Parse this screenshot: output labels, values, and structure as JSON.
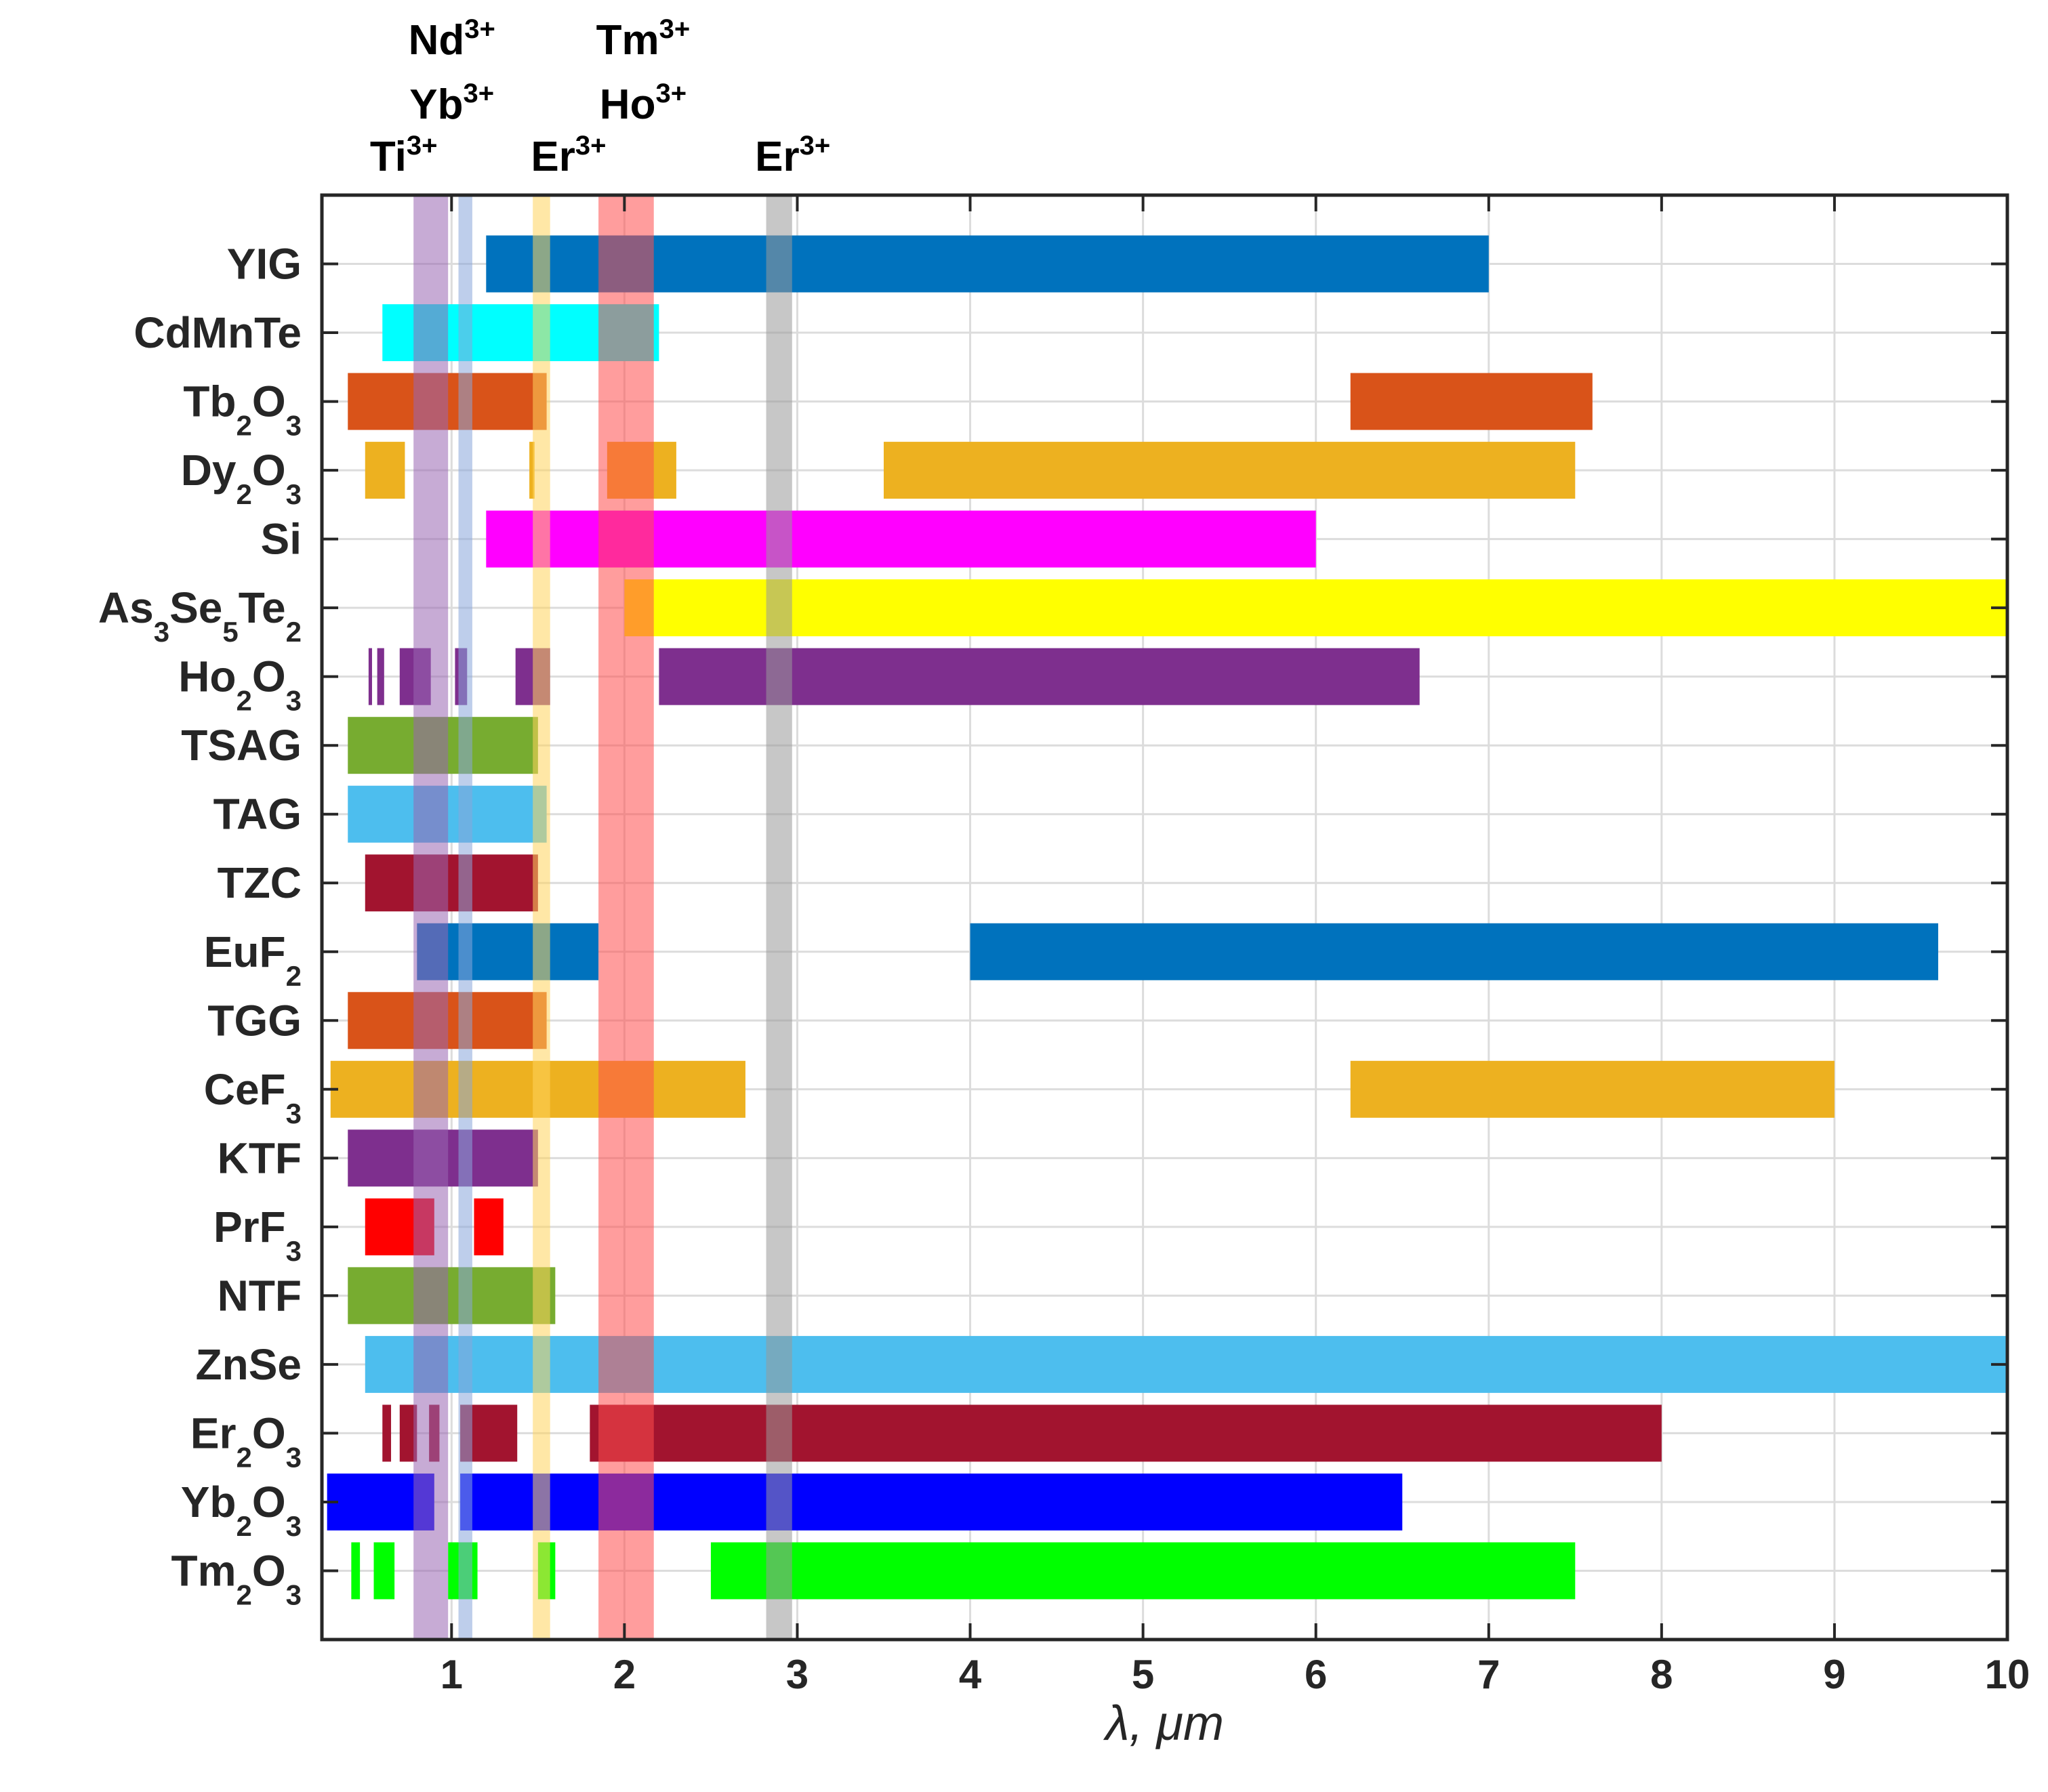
{
  "chart_data": {
    "type": "range_bar",
    "xlabel": "λ, μm",
    "xlim": [
      0.25,
      10
    ],
    "xticks": [
      1,
      2,
      3,
      4,
      5,
      6,
      7,
      8,
      9,
      10
    ],
    "grid": true,
    "categories": [
      {
        "name": "YIG",
        "ranges": [
          [
            1.2,
            7.0
          ]
        ],
        "color": "#0072BD"
      },
      {
        "name": "CdMnTe",
        "ranges": [
          [
            0.6,
            2.2
          ]
        ],
        "color": "#00FFFF"
      },
      {
        "name": "Tb2O3",
        "ranges": [
          [
            0.4,
            1.55
          ],
          [
            6.2,
            7.6
          ]
        ],
        "color": "#D95319"
      },
      {
        "name": "Dy2O3",
        "ranges": [
          [
            0.5,
            0.73
          ],
          [
            1.45,
            1.48
          ],
          [
            1.9,
            2.3
          ],
          [
            3.5,
            7.5
          ]
        ],
        "color": "#EDB120"
      },
      {
        "name": "Si",
        "ranges": [
          [
            1.2,
            6.0
          ]
        ],
        "color": "#FF00FF"
      },
      {
        "name": "As3Se5Te2",
        "ranges": [
          [
            2.0,
            10.0
          ]
        ],
        "color": "#FFFF00"
      },
      {
        "name": "Ho2O3",
        "ranges": [
          [
            0.52,
            0.54
          ],
          [
            0.57,
            0.61
          ],
          [
            0.7,
            0.88
          ],
          [
            1.02,
            1.09
          ],
          [
            1.37,
            1.57
          ],
          [
            2.2,
            6.6
          ]
        ],
        "color": "#7E2F8E"
      },
      {
        "name": "TSAG",
        "ranges": [
          [
            0.4,
            1.5
          ]
        ],
        "color": "#77AC30"
      },
      {
        "name": "TAG",
        "ranges": [
          [
            0.4,
            1.55
          ]
        ],
        "color": "#4DBEEE"
      },
      {
        "name": "TZC",
        "ranges": [
          [
            0.5,
            1.5
          ]
        ],
        "color": "#A2142F"
      },
      {
        "name": "EuF2",
        "ranges": [
          [
            0.8,
            1.85
          ],
          [
            4.0,
            9.6
          ]
        ],
        "color": "#0072BD"
      },
      {
        "name": "TGG",
        "ranges": [
          [
            0.4,
            1.55
          ]
        ],
        "color": "#D95319"
      },
      {
        "name": "CeF3",
        "ranges": [
          [
            0.3,
            2.7
          ],
          [
            6.2,
            9.0
          ]
        ],
        "color": "#EDB120"
      },
      {
        "name": "KTF",
        "ranges": [
          [
            0.4,
            1.5
          ]
        ],
        "color": "#7E2F8E"
      },
      {
        "name": "PrF3",
        "ranges": [
          [
            0.5,
            0.9
          ],
          [
            1.13,
            1.3
          ]
        ],
        "color": "#FF0000"
      },
      {
        "name": "NTF",
        "ranges": [
          [
            0.4,
            1.6
          ]
        ],
        "color": "#77AC30"
      },
      {
        "name": "ZnSe",
        "ranges": [
          [
            0.5,
            10.0
          ]
        ],
        "color": "#4DBEEE"
      },
      {
        "name": "Er2O3",
        "ranges": [
          [
            0.6,
            0.65
          ],
          [
            0.7,
            0.8
          ],
          [
            0.87,
            0.93
          ],
          [
            1.05,
            1.38
          ],
          [
            1.8,
            8.0
          ]
        ],
        "color": "#A2142F"
      },
      {
        "name": "Yb2O3",
        "ranges": [
          [
            0.28,
            0.9
          ],
          [
            1.05,
            6.5
          ]
        ],
        "color": "#0000FF"
      },
      {
        "name": "Tm2O3",
        "ranges": [
          [
            0.42,
            0.47
          ],
          [
            0.55,
            0.67
          ],
          [
            0.98,
            1.15
          ],
          [
            1.5,
            1.6
          ],
          [
            2.5,
            7.5
          ]
        ],
        "color": "#00FF00"
      }
    ],
    "category_labels": [
      {
        "base": "YIG"
      },
      {
        "base": "CdMnTe"
      },
      {
        "base": "Tb",
        "sub": "2",
        "mid": "O",
        "sub2": "3"
      },
      {
        "base": "Dy",
        "sub": "2",
        "mid": "O",
        "sub2": "3"
      },
      {
        "base": "Si"
      },
      {
        "base": "As",
        "sub": "3",
        "mid": "Se",
        "sub2": "5",
        "mid2": "Te",
        "sub3": "2"
      },
      {
        "base": "Ho",
        "sub": "2",
        "mid": "O",
        "sub2": "3"
      },
      {
        "base": "TSAG"
      },
      {
        "base": "TAG"
      },
      {
        "base": "TZC"
      },
      {
        "base": "EuF",
        "sub": "2"
      },
      {
        "base": "TGG"
      },
      {
        "base": "CeF",
        "sub": "3"
      },
      {
        "base": "KTF"
      },
      {
        "base": "PrF",
        "sub": "3"
      },
      {
        "base": "NTF"
      },
      {
        "base": "ZnSe"
      },
      {
        "base": "Er",
        "sub": "2",
        "mid": "O",
        "sub2": "3"
      },
      {
        "base": "Yb",
        "sub": "2",
        "mid": "O",
        "sub2": "3"
      },
      {
        "base": "Tm",
        "sub": "2",
        "mid": "O",
        "sub2": "3"
      }
    ],
    "bands": [
      {
        "ion": "Ti",
        "charge": "3+",
        "range": [
          0.78,
          0.98
        ],
        "color": "#9966B3"
      },
      {
        "ion": "Nd",
        "charge": "3+",
        "range": [
          1.04,
          1.12
        ],
        "color": "#88A6DB"
      },
      {
        "ion": "Yb",
        "charge": "3+",
        "range": [
          1.04,
          1.12
        ],
        "color": "#88A6DB"
      },
      {
        "ion": "Er",
        "charge": "3+",
        "range": [
          1.47,
          1.57
        ],
        "color": "#FFD35C"
      },
      {
        "ion": "Tm",
        "charge": "3+",
        "range": [
          1.85,
          2.17
        ],
        "color": "#FF4D4D"
      },
      {
        "ion": "Ho",
        "charge": "3+",
        "range": [
          1.85,
          2.17
        ],
        "color": "#FF4D4D"
      },
      {
        "ion": "Er",
        "charge": "3+",
        "range": [
          2.82,
          2.97
        ],
        "color": "#999999"
      }
    ]
  }
}
